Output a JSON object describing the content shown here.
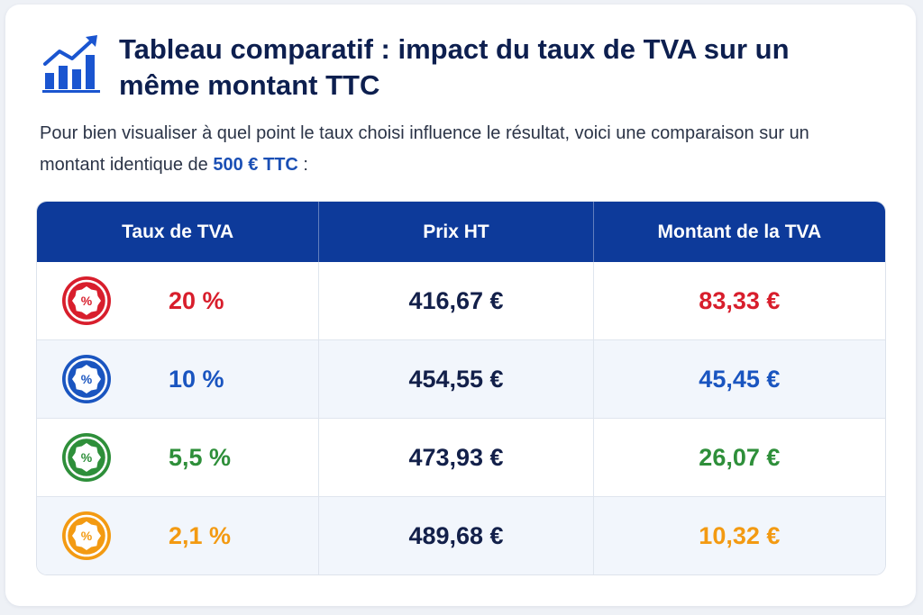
{
  "title": "Tableau comparatif : impact du taux de TVA sur un même montant TTC",
  "intro": {
    "text_before": "Pour bien visualiser à quel point le taux choisi influence le résultat, voici une comparaison sur un montant identique de ",
    "highlight": "500 € TTC",
    "text_after": " :"
  },
  "table": {
    "headers": [
      "Taux de TVA",
      "Prix HT",
      "Montant de la TVA"
    ],
    "rows": [
      {
        "rate": "20 %",
        "ht": "416,67 €",
        "tva": "83,33 €",
        "color": "#d81e2c",
        "icon": "percent-badge-icon"
      },
      {
        "rate": "10 %",
        "ht": "454,55 €",
        "tva": "45,45 €",
        "color": "#1a55c0",
        "icon": "percent-badge-icon"
      },
      {
        "rate": "5,5 %",
        "ht": "473,93 €",
        "tva": "26,07 €",
        "color": "#2e8f3a",
        "icon": "percent-badge-icon"
      },
      {
        "rate": "2,1 %",
        "ht": "489,68 €",
        "tva": "10,32 €",
        "color": "#f39a12",
        "icon": "percent-badge-icon"
      }
    ]
  },
  "colors": {
    "title": "#0d1f4f",
    "header_bg": "#0d3a9a",
    "highlight": "#1a4fb5"
  },
  "logo_icon": "growth-chart-icon",
  "badge_symbol": "%"
}
